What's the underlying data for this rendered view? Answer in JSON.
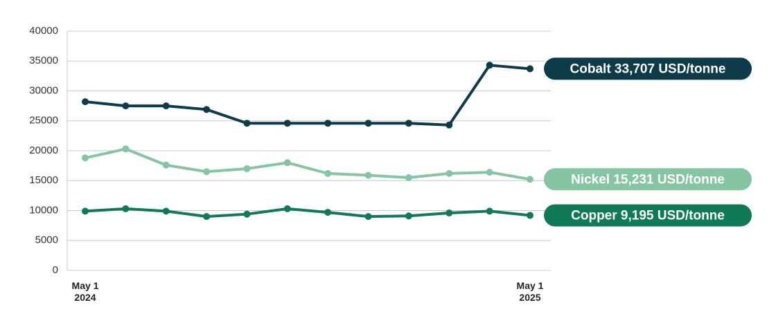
{
  "chart_data": {
    "type": "line",
    "categories": [
      "May 1\n2024",
      null,
      null,
      null,
      null,
      null,
      null,
      null,
      null,
      null,
      null,
      "May 1\n2025"
    ],
    "series": [
      {
        "name": "Cobalt",
        "color": "#0d3b4a",
        "values": [
          28200,
          27500,
          27500,
          26900,
          24600,
          24600,
          24600,
          24600,
          24600,
          24300,
          34300,
          33707
        ],
        "value_labels": [
          null,
          null,
          null,
          null,
          null,
          null,
          null,
          null,
          null,
          null,
          null,
          "Cobalt 33,707 USD/tonne"
        ]
      },
      {
        "name": "Nickel",
        "color": "#86c5a4",
        "values": [
          18800,
          20300,
          17600,
          16500,
          17000,
          18000,
          16200,
          15900,
          15500,
          16200,
          16400,
          15231
        ],
        "value_labels": [
          null,
          null,
          null,
          null,
          null,
          null,
          null,
          null,
          null,
          null,
          null,
          "Nickel 15,231 USD/tonne"
        ]
      },
      {
        "name": "Copper",
        "color": "#0f7a55",
        "values": [
          9900,
          10300,
          9900,
          9000,
          9400,
          10300,
          9700,
          9000,
          9100,
          9600,
          9900,
          9195
        ],
        "value_labels": [
          null,
          null,
          null,
          null,
          null,
          null,
          null,
          null,
          null,
          null,
          null,
          "Copper 9,195 USD/tonne"
        ]
      }
    ],
    "ylim": [
      0,
      40000
    ],
    "yticks": [
      0,
      5000,
      10000,
      15000,
      20000,
      25000,
      30000,
      35000,
      40000
    ],
    "grid": true
  }
}
